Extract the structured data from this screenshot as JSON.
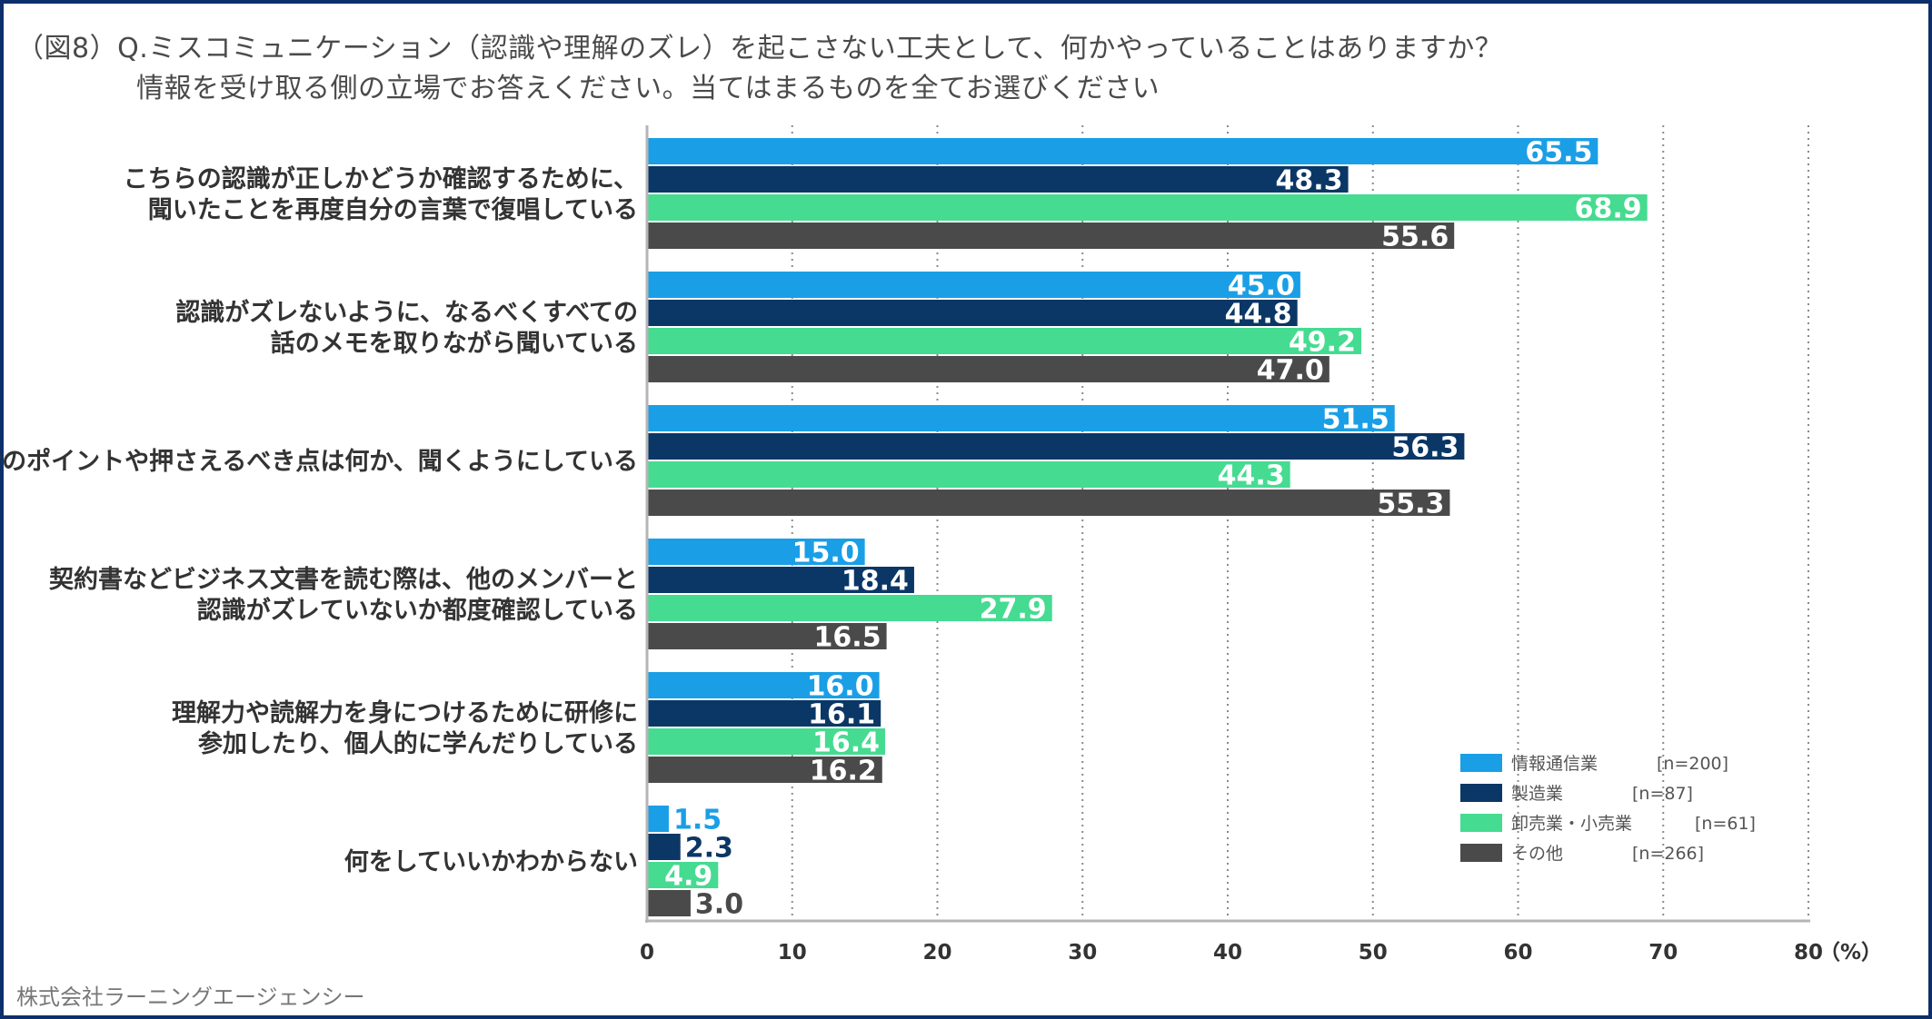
{
  "title_line1": "（図8）Q.ミスコミュニケーション（認識や理解のズレ）を起こさない工夫として、何かやっていることはありますか？",
  "title_line2": "情報を受け取る側の立場でお答えください。当てはまるものを全てお選びください",
  "credit": "株式会社ラーニングエージェンシー",
  "colors": {
    "info": "#1a9fe6",
    "mfg": "#0b3766",
    "retail": "#45db91",
    "other": "#4b4a4b",
    "frame": "#0d2f6b"
  },
  "chart_data": {
    "type": "bar",
    "orientation": "horizontal",
    "xlim": [
      0,
      80
    ],
    "xticks": [
      "0",
      "10",
      "20",
      "30",
      "40",
      "50",
      "60",
      "70",
      "80"
    ],
    "unit_label": "（%）",
    "categories": [
      [
        "こちらの認識が正しかどうか確認するために、",
        "聞いたことを再度自分の言葉で復唱している"
      ],
      [
        "認識がズレないように、なるべくすべての",
        "話のメモを取りながら聞いている"
      ],
      [
        "話のポイントや押さえるべき点は何か、聞くようにしている"
      ],
      [
        "契約書などビジネス文書を読む際は、他のメンバーと",
        "認識がズレていないか都度確認している"
      ],
      [
        "理解力や読解力を身につけるために研修に",
        "参加したり、個人的に学んだりしている"
      ],
      [
        "何をしていいかわからない"
      ]
    ],
    "series": [
      {
        "name": "情報通信業",
        "n": "[n=200]",
        "color": "#1a9fe6",
        "values": [
          65.5,
          45.0,
          51.5,
          15.0,
          16.0,
          1.5
        ]
      },
      {
        "name": "製造業",
        "n": "[n=87]",
        "color": "#0b3766",
        "values": [
          48.3,
          44.8,
          56.3,
          18.4,
          16.1,
          2.3
        ]
      },
      {
        "name": "卸売業・小売業",
        "n": "[n=61]",
        "color": "#45db91",
        "values": [
          68.9,
          49.2,
          44.3,
          27.9,
          16.4,
          4.9
        ]
      },
      {
        "name": "その他",
        "n": "[n=266]",
        "color": "#4b4a4b",
        "values": [
          55.6,
          47.0,
          55.3,
          16.5,
          16.2,
          3.0
        ]
      }
    ],
    "legend_position": "bottom-right",
    "grid": "dotted vertical"
  }
}
